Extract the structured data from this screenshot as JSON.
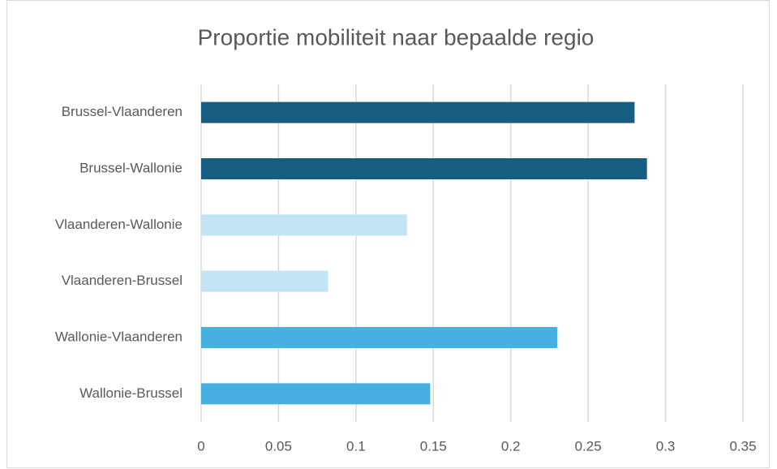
{
  "chart_data": {
    "type": "bar",
    "orientation": "horizontal",
    "title": "Proportie mobiliteit naar bepaalde regio",
    "categories": [
      "Brussel-Vlaanderen",
      "Brussel-Wallonie",
      "Vlaanderen-Wallonie",
      "Vlaanderen-Brussel",
      "Wallonie-Vlaanderen",
      "Wallonie-Brussel"
    ],
    "values": [
      0.28,
      0.288,
      0.133,
      0.082,
      0.23,
      0.148
    ],
    "colors": [
      "#175f82",
      "#175f82",
      "#c3e4f5",
      "#c3e4f5",
      "#46b0e1",
      "#46b0e1"
    ],
    "xlim": [
      0,
      0.35
    ],
    "xticks": [
      0,
      0.05,
      0.1,
      0.15,
      0.2,
      0.25,
      0.3,
      0.35
    ],
    "grid": true
  }
}
